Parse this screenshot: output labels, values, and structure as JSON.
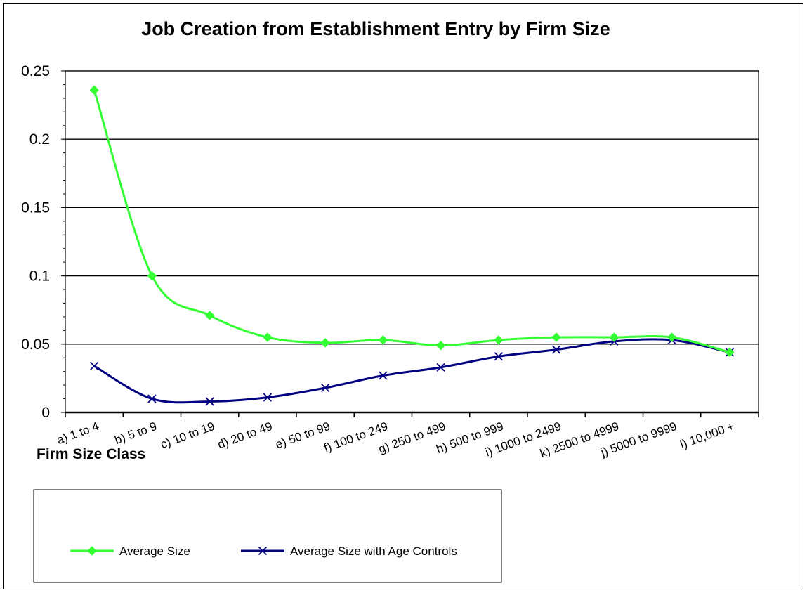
{
  "chart_data": {
    "type": "line",
    "title": "Job Creation from Establishment Entry by Firm Size",
    "xlabel": "Firm Size Class",
    "ylabel": "",
    "ylim": [
      0,
      0.25
    ],
    "yticks": [
      "0",
      "0.05",
      "0.1",
      "0.15",
      "0.2",
      "0.25"
    ],
    "ytick_values": [
      0,
      0.05,
      0.1,
      0.15,
      0.2,
      0.25
    ],
    "grid": true,
    "legend_position": "bottom",
    "categories": [
      "a) 1 to 4",
      "b) 5 to 9",
      "c) 10 to 19",
      "d) 20 to 49",
      "e) 50 to 99",
      "f) 100 to 249",
      "g) 250 to 499",
      "h) 500 to 999",
      "i) 1000 to 2499",
      "k) 2500 to 4999",
      "j) 5000 to 9999",
      "l) 10,000 +"
    ],
    "series": [
      {
        "name": "Average Size",
        "color": "#33ff33",
        "marker": "diamond",
        "values": [
          0.236,
          0.1,
          0.071,
          0.055,
          0.051,
          0.053,
          0.049,
          0.053,
          0.055,
          0.055,
          0.055,
          0.044
        ]
      },
      {
        "name": "Average Size with Age Controls",
        "color": "#000080",
        "marker": "x",
        "values": [
          0.034,
          0.01,
          0.008,
          0.011,
          0.018,
          0.027,
          0.033,
          0.041,
          0.046,
          0.052,
          0.053,
          0.044
        ]
      }
    ]
  }
}
